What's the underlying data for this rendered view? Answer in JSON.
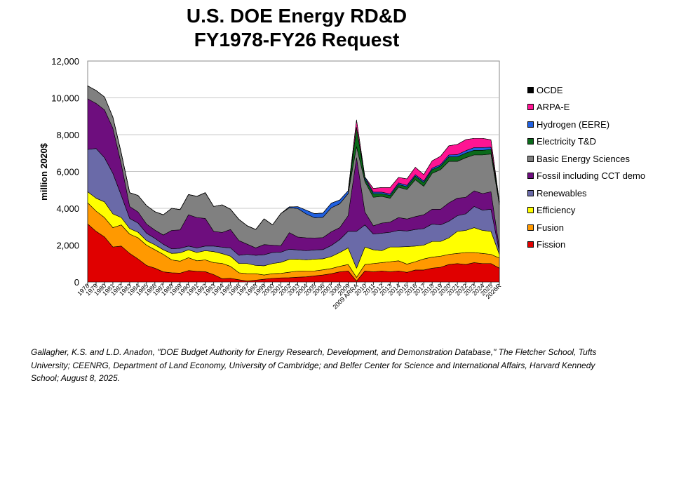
{
  "chart_data": {
    "type": "area",
    "stacked": true,
    "title_line1": "U.S. DOE Energy RD&D",
    "title_line2": "FY1978-FY26 Request",
    "ylabel": "million 2020$",
    "xlabel": "",
    "ylim": [
      0,
      12000
    ],
    "yticks": [
      "0",
      "2,000",
      "4,000",
      "6,000",
      "8,000",
      "10,000",
      "12,000"
    ],
    "legend_position": "right",
    "categories": [
      "1978",
      "1979",
      "1980",
      "1981",
      "1982",
      "1983",
      "1984",
      "1985",
      "1986",
      "1987",
      "1988",
      "1989",
      "1990",
      "1991",
      "1992",
      "1993",
      "1994",
      "1995",
      "1996",
      "1997",
      "1998",
      "1999",
      "2000",
      "2001",
      "2002",
      "2003",
      "2004",
      "2005",
      "2006",
      "2007",
      "2008",
      "2009",
      "2009 ARRA",
      "2010",
      "2011",
      "2012",
      "2013",
      "2014",
      "2015",
      "2016",
      "2017",
      "2018",
      "2019",
      "2020",
      "2021",
      "2022",
      "2023",
      "2024",
      "2025",
      "2026R"
    ],
    "series": [
      {
        "name": "Fission",
        "color": "#e00000",
        "values": [
          3150,
          2750,
          2450,
          1900,
          1950,
          1550,
          1250,
          900,
          750,
          550,
          500,
          480,
          620,
          580,
          560,
          400,
          180,
          200,
          120,
          50,
          100,
          150,
          200,
          220,
          230,
          260,
          280,
          330,
          380,
          450,
          550,
          600,
          50,
          600,
          550,
          600,
          550,
          600,
          520,
          650,
          650,
          750,
          800,
          950,
          1000,
          950,
          1050,
          1000,
          1000,
          750
        ]
      },
      {
        "name": "Fusion",
        "color": "#ff9900",
        "values": [
          1150,
          1100,
          1050,
          1050,
          1150,
          1050,
          1150,
          1100,
          1000,
          950,
          700,
          650,
          700,
          570,
          640,
          650,
          830,
          650,
          380,
          400,
          350,
          230,
          250,
          250,
          300,
          330,
          320,
          270,
          280,
          280,
          300,
          350,
          200,
          350,
          450,
          450,
          550,
          550,
          450,
          450,
          600,
          600,
          600,
          550,
          550,
          650,
          550,
          550,
          500,
          550
        ]
      },
      {
        "name": "Efficiency",
        "color": "#ffff00",
        "values": [
          600,
          700,
          850,
          750,
          400,
          300,
          300,
          250,
          270,
          250,
          350,
          450,
          430,
          450,
          500,
          600,
          530,
          550,
          500,
          550,
          450,
          500,
          550,
          600,
          700,
          650,
          600,
          640,
          600,
          650,
          750,
          900,
          500,
          950,
          750,
          650,
          800,
          750,
          950,
          850,
          750,
          850,
          800,
          900,
          1200,
          1200,
          1350,
          1250,
          1250,
          200
        ]
      },
      {
        "name": "Renewables",
        "color": "#6a6aa8",
        "values": [
          2300,
          2700,
          2400,
          2200,
          1200,
          550,
          500,
          400,
          350,
          300,
          250,
          250,
          200,
          250,
          250,
          300,
          350,
          450,
          450,
          500,
          550,
          600,
          600,
          550,
          550,
          500,
          500,
          500,
          500,
          600,
          700,
          900,
          2000,
          1200,
          850,
          950,
          800,
          900,
          850,
          900,
          900,
          950,
          900,
          900,
          850,
          900,
          1150,
          1100,
          1200,
          150
        ]
      },
      {
        "name": "Fossil including CCT demo",
        "color": "#6e0e7e",
        "values": [
          2750,
          2450,
          2600,
          2450,
          1700,
          650,
          600,
          500,
          450,
          500,
          1000,
          1000,
          1700,
          1650,
          1500,
          800,
          800,
          1000,
          800,
          550,
          400,
          550,
          400,
          350,
          900,
          700,
          700,
          650,
          650,
          750,
          650,
          850,
          4000,
          700,
          450,
          550,
          550,
          700,
          650,
          700,
          750,
          800,
          850,
          1000,
          950,
          900,
          850,
          900,
          950,
          200
        ]
      },
      {
        "name": "Basic Energy Sciences",
        "color": "#808080",
        "values": [
          700,
          700,
          700,
          600,
          600,
          750,
          900,
          1000,
          1000,
          1100,
          1200,
          1100,
          1100,
          1150,
          1400,
          1350,
          1500,
          1100,
          1150,
          1000,
          1000,
          1400,
          1100,
          1750,
          1350,
          1550,
          1300,
          1100,
          1100,
          1300,
          1300,
          1200,
          600,
          1650,
          1550,
          1450,
          1300,
          1650,
          1600,
          2000,
          1550,
          1950,
          2150,
          2250,
          2000,
          2150,
          1950,
          2100,
          2050,
          2350
        ]
      },
      {
        "name": "Electricity T&D",
        "color": "#0a6a1a",
        "values": [
          0,
          0,
          0,
          0,
          0,
          0,
          0,
          0,
          0,
          0,
          0,
          0,
          0,
          0,
          0,
          0,
          0,
          0,
          0,
          0,
          0,
          0,
          0,
          0,
          0,
          0,
          0,
          0,
          0,
          0,
          0,
          0,
          1050,
          150,
          200,
          150,
          150,
          150,
          150,
          200,
          200,
          200,
          200,
          250,
          250,
          250,
          250,
          250,
          250,
          150
        ]
      },
      {
        "name": "Hydrogen (EERE)",
        "color": "#2060e0",
        "values": [
          0,
          0,
          0,
          0,
          0,
          0,
          0,
          0,
          0,
          0,
          0,
          0,
          0,
          0,
          0,
          0,
          0,
          0,
          0,
          0,
          0,
          0,
          0,
          0,
          50,
          100,
          200,
          220,
          230,
          250,
          200,
          150,
          0,
          100,
          80,
          80,
          80,
          80,
          80,
          80,
          80,
          80,
          80,
          100,
          120,
          130,
          150,
          150,
          120,
          10
        ]
      },
      {
        "name": "ARPA-E",
        "color": "#ff1493",
        "values": [
          0,
          0,
          0,
          0,
          0,
          0,
          0,
          0,
          0,
          0,
          0,
          0,
          0,
          0,
          0,
          0,
          0,
          0,
          0,
          0,
          0,
          0,
          0,
          0,
          0,
          0,
          0,
          0,
          0,
          0,
          0,
          0,
          400,
          0,
          200,
          250,
          350,
          300,
          350,
          400,
          350,
          400,
          450,
          500,
          550,
          600,
          500,
          500,
          400,
          0
        ]
      },
      {
        "name": "OCDE",
        "color": "#000000",
        "values": [
          0,
          0,
          0,
          0,
          0,
          0,
          0,
          0,
          0,
          0,
          0,
          0,
          0,
          0,
          0,
          0,
          0,
          0,
          0,
          0,
          0,
          0,
          0,
          0,
          0,
          0,
          0,
          0,
          0,
          0,
          0,
          0,
          0,
          0,
          0,
          0,
          0,
          0,
          0,
          0,
          0,
          0,
          0,
          0,
          0,
          0,
          0,
          0,
          0,
          0
        ]
      }
    ]
  },
  "legend_order": [
    "OCDE",
    "ARPA-E",
    "Hydrogen (EERE)",
    "Electricity T&D",
    "Basic Energy Sciences",
    "Fossil including CCT demo",
    "Renewables",
    "Efficiency",
    "Fusion",
    "Fission"
  ],
  "source": "Gallagher, K.S. and L.D. Anadon, \"DOE Budget Authority for Energy Research, Development, and Demonstration Database,\" The Fletcher School, Tufts University; CEENRG, Department of Land Economy, University of Cambridge; and Belfer Center for Science and International Affairs, Harvard Kennedy School; August 8, 2025."
}
